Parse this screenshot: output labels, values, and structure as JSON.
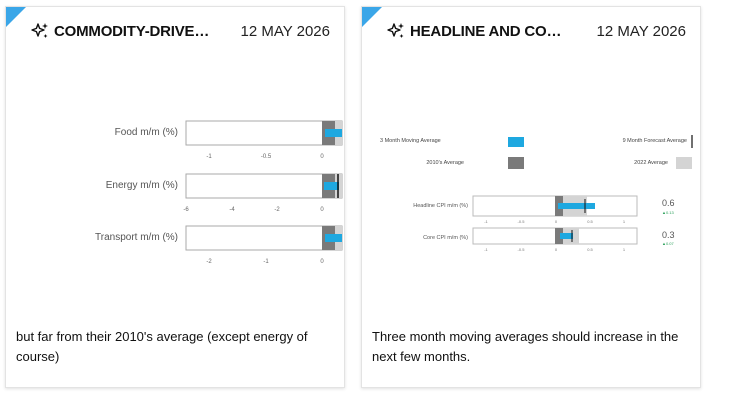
{
  "colors": {
    "accent": "#3aa6e8",
    "bar_blue": "#1ea8e0",
    "bar_dark": "#7a7a7a",
    "bar_light": "#d4d4d4"
  },
  "card1": {
    "title": "COMMODITY-DRIVEN…",
    "date": "12 MAY 2026",
    "caption": "but far from their 2010's average (except energy of course)",
    "icon": "sparkle-icon",
    "rows": [
      {
        "label": "Food m/m (%)",
        "ticks": [
          "-1",
          "-0.5",
          "0"
        ]
      },
      {
        "label": "Energy m/m (%)",
        "ticks": [
          "-6",
          "-4",
          "-2",
          "0"
        ]
      },
      {
        "label": "Transport m/m (%)",
        "ticks": [
          "-2",
          "-1",
          "0"
        ]
      }
    ]
  },
  "card2": {
    "title": "HEADLINE AND CORE…",
    "date": "12 MAY 2026",
    "caption": "Three month moving averages should increase in the next few months.",
    "icon": "sparkle-icon",
    "legend": {
      "ma3": "3 Month Moving Average",
      "fc9": "9 Month Forecast Average",
      "avg2010": "2010's Average",
      "avg2022": "2022 Average"
    },
    "rows": [
      {
        "label": "Headline CPI m/m (%)",
        "ticks": [
          "-1",
          "-0.5",
          "0",
          "0.5",
          "1"
        ],
        "value": "0.6",
        "sub": "▲0.13"
      },
      {
        "label": "Core CPI m/m (%)",
        "ticks": [
          "-1",
          "-0.5",
          "0",
          "0.5",
          "1"
        ],
        "value": "0.3",
        "sub": "▲0.07"
      }
    ]
  }
}
